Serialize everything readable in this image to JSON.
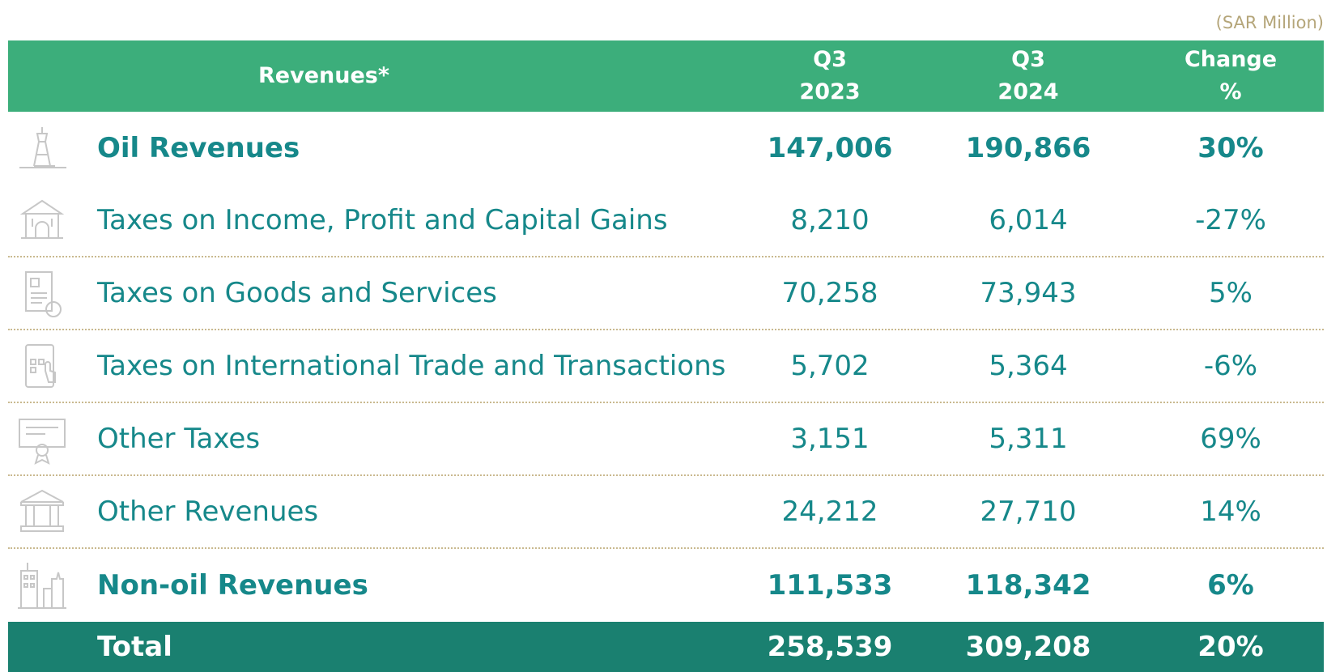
{
  "unit_note": "(SAR Million)",
  "table": {
    "header": [
      [
        "Revenues*"
      ],
      [
        "Q3",
        "2023"
      ],
      [
        "Q3",
        "2024"
      ],
      [
        "Change",
        "%"
      ]
    ],
    "rows": [
      {
        "label": "Oil Revenues",
        "q3_2023": "147,006",
        "q3_2024": "190,866",
        "change": "30%",
        "bold": true
      },
      {
        "label": "Taxes on Income, Profit and Capital Gains",
        "q3_2023": "8,210",
        "q3_2024": "6,014",
        "change": "-27%",
        "bold": false
      },
      {
        "label": "Taxes on Goods and Services",
        "q3_2023": "70,258",
        "q3_2024": "73,943",
        "change": "5%",
        "bold": false
      },
      {
        "label": "Taxes on International Trade and Transactions",
        "q3_2023": "5,702",
        "q3_2024": "5,364",
        "change": "-6%",
        "bold": false
      },
      {
        "label": "Other Taxes",
        "q3_2023": "3,151",
        "q3_2024": "5,311",
        "change": "69%",
        "bold": false
      },
      {
        "label": "Other Revenues",
        "q3_2023": "24,212",
        "q3_2024": "27,710",
        "change": "14%",
        "bold": false
      },
      {
        "label": "Non-oil Revenues",
        "q3_2023": "111,533",
        "q3_2024": "118,342",
        "change": "6%",
        "bold": true
      }
    ],
    "total": {
      "label": "Total",
      "q3_2023": "258,539",
      "q3_2024": "309,208",
      "change": "20%"
    }
  }
}
